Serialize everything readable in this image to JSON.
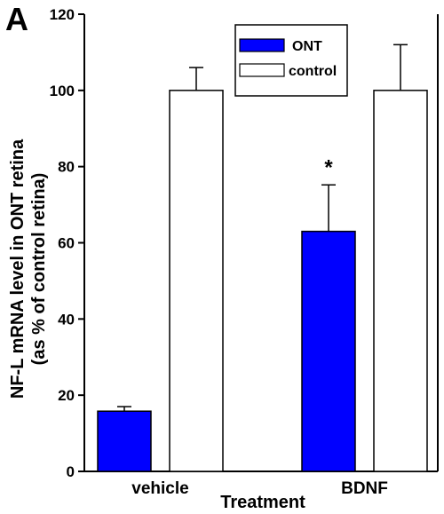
{
  "panel_label": "A",
  "chart_data": {
    "type": "bar",
    "categories": [
      "vehicle",
      "BDNF"
    ],
    "series": [
      {
        "name": "ONT",
        "values": [
          15.8,
          63.0
        ],
        "errors": [
          1.2,
          12.2
        ],
        "color": "#0000ff"
      },
      {
        "name": "control",
        "values": [
          100,
          100
        ],
        "errors": [
          6.0,
          12.0
        ],
        "color": "#ffffff"
      }
    ],
    "xlabel": "Treatment",
    "ylabel": [
      "NF-L mRNA level in ONT retina",
      "(as % of control retina)"
    ],
    "ylim": [
      0,
      120
    ],
    "yticks": [
      0,
      20,
      40,
      60,
      80,
      100,
      120
    ],
    "grid": false,
    "legend_position": "top-center",
    "annotations": [
      {
        "category": "BDNF",
        "series": "ONT",
        "text": "*"
      }
    ]
  }
}
